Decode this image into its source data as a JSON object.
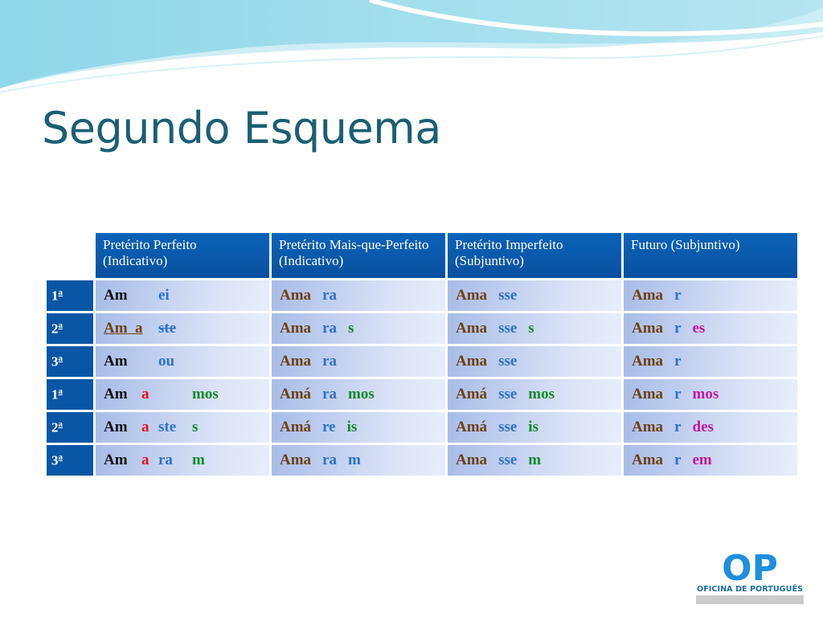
{
  "title": "Segundo Esquema",
  "colors": {
    "black": "#111111",
    "brown": "#6e4114",
    "blue": "#2c72c4",
    "green": "#138a2a",
    "red": "#e8101e",
    "magenta": "#c0189c",
    "header": "#0a5cae",
    "title": "#1b5f73"
  },
  "headers": [
    "Pretérito Perfeito (Indicativo)",
    "Pretérito Mais-que-Perfeito (Indicativo)",
    "Pretérito Imperfeito (Subjuntivo)",
    "Futuro (Subjuntivo)"
  ],
  "rows": [
    {
      "person": "1",
      "ord": "a",
      "cells": [
        [
          {
            "t": "Am",
            "c": "black"
          },
          {
            "t": "",
            "c": "red"
          },
          {
            "t": "ei",
            "c": "blue"
          },
          {
            "t": "",
            "c": "green"
          }
        ],
        [
          {
            "t": "Ama",
            "c": "brown"
          },
          {
            "t": "ra",
            "c": "blue"
          }
        ],
        [
          {
            "t": "Ama",
            "c": "brown"
          },
          {
            "t": "sse",
            "c": "blue"
          }
        ],
        [
          {
            "t": "Ama",
            "c": "brown"
          },
          {
            "t": "r",
            "c": "blue"
          }
        ]
      ]
    },
    {
      "person": "2",
      "ord": "a",
      "cells": [
        [
          {
            "t": "Am  a",
            "c": "brown",
            "u": true
          },
          {
            "t": "",
            "c": "red"
          },
          {
            "t": "ste",
            "c": "blue",
            "s": true
          },
          {
            "t": "",
            "c": "green"
          }
        ],
        [
          {
            "t": "Ama",
            "c": "brown"
          },
          {
            "t": "ra",
            "c": "blue"
          },
          {
            "t": "s",
            "c": "green"
          }
        ],
        [
          {
            "t": "Ama",
            "c": "brown"
          },
          {
            "t": "sse",
            "c": "blue"
          },
          {
            "t": "s",
            "c": "green"
          }
        ],
        [
          {
            "t": "Ama",
            "c": "brown"
          },
          {
            "t": "r",
            "c": "blue"
          },
          {
            "t": "es",
            "c": "magenta"
          }
        ]
      ]
    },
    {
      "person": "3",
      "ord": "a",
      "cells": [
        [
          {
            "t": "Am",
            "c": "black"
          },
          {
            "t": "",
            "c": "red"
          },
          {
            "t": "ou",
            "c": "blue"
          },
          {
            "t": "",
            "c": "green"
          }
        ],
        [
          {
            "t": "Ama",
            "c": "brown"
          },
          {
            "t": "ra",
            "c": "blue"
          }
        ],
        [
          {
            "t": "Ama",
            "c": "brown"
          },
          {
            "t": "sse",
            "c": "blue"
          }
        ],
        [
          {
            "t": "Ama",
            "c": "brown"
          },
          {
            "t": "r",
            "c": "blue"
          }
        ]
      ]
    },
    {
      "person": "1",
      "ord": "a",
      "cells": [
        [
          {
            "t": "Am",
            "c": "black"
          },
          {
            "t": "a",
            "c": "red"
          },
          {
            "t": "",
            "c": "blue"
          },
          {
            "t": "mos",
            "c": "green"
          }
        ],
        [
          {
            "t": "Amá",
            "c": "brown"
          },
          {
            "t": "ra",
            "c": "blue"
          },
          {
            "t": "mos",
            "c": "green"
          }
        ],
        [
          {
            "t": "Amá",
            "c": "brown"
          },
          {
            "t": "sse",
            "c": "blue"
          },
          {
            "t": "mos",
            "c": "green"
          }
        ],
        [
          {
            "t": "Ama",
            "c": "brown"
          },
          {
            "t": "r",
            "c": "blue"
          },
          {
            "t": "mos",
            "c": "magenta"
          }
        ]
      ]
    },
    {
      "person": "2",
      "ord": "a",
      "cells": [
        [
          {
            "t": "Am",
            "c": "black"
          },
          {
            "t": "a",
            "c": "red"
          },
          {
            "t": "ste",
            "c": "blue"
          },
          {
            "t": "s",
            "c": "green"
          }
        ],
        [
          {
            "t": "Amá",
            "c": "brown"
          },
          {
            "t": "re",
            "c": "blue"
          },
          {
            "t": "is",
            "c": "green"
          }
        ],
        [
          {
            "t": "Amá",
            "c": "brown"
          },
          {
            "t": "sse",
            "c": "blue"
          },
          {
            "t": "is",
            "c": "green"
          }
        ],
        [
          {
            "t": "Ama",
            "c": "brown"
          },
          {
            "t": "r",
            "c": "blue"
          },
          {
            "t": "des",
            "c": "magenta"
          }
        ]
      ]
    },
    {
      "person": "3",
      "ord": "a",
      "cells": [
        [
          {
            "t": "Am",
            "c": "black"
          },
          {
            "t": "a",
            "c": "red"
          },
          {
            "t": "ra",
            "c": "blue"
          },
          {
            "t": "m",
            "c": "green"
          }
        ],
        [
          {
            "t": "Ama",
            "c": "brown"
          },
          {
            "t": "ra",
            "c": "blue"
          },
          {
            "t": "m",
            "c": "blue"
          }
        ],
        [
          {
            "t": "Ama",
            "c": "brown"
          },
          {
            "t": "sse",
            "c": "blue"
          },
          {
            "t": "m",
            "c": "green"
          }
        ],
        [
          {
            "t": "Ama",
            "c": "brown"
          },
          {
            "t": "r",
            "c": "blue"
          },
          {
            "t": "em",
            "c": "magenta"
          }
        ]
      ]
    }
  ],
  "logo": {
    "letters": "OP",
    "text": "OFICINA DE PORTUGUÊS"
  }
}
